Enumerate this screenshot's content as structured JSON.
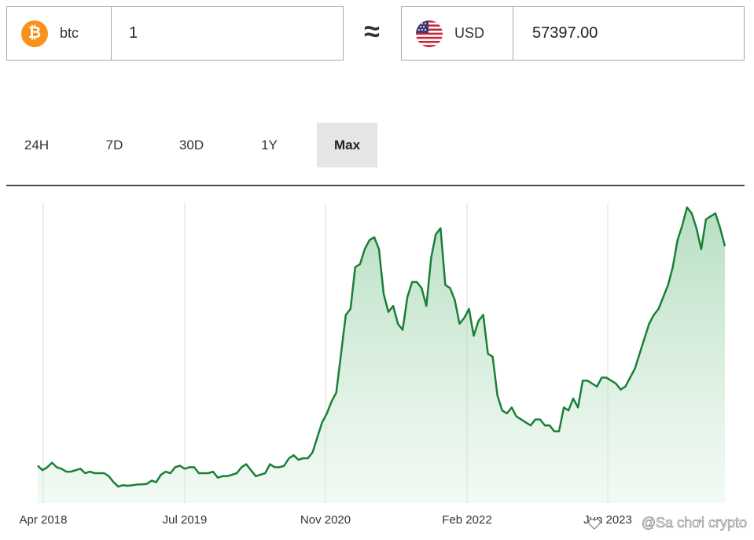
{
  "converter": {
    "from": {
      "icon": "bitcoin-icon",
      "code": "btc",
      "amount": "1",
      "color": "#f7931a"
    },
    "approx_symbol": "≈",
    "to": {
      "icon": "us-flag-icon",
      "code": "USD",
      "amount": "57397.00"
    }
  },
  "tabs": [
    {
      "label": "24H",
      "active": false
    },
    {
      "label": "7D",
      "active": false
    },
    {
      "label": "30D",
      "active": false
    },
    {
      "label": "1Y",
      "active": false
    },
    {
      "label": "Max",
      "active": true
    }
  ],
  "watermark": "@Sa chơi crypto",
  "chart_data": {
    "type": "area",
    "x_ticks": [
      "Apr 2018",
      "Jul 2019",
      "Nov 2020",
      "Feb 2022",
      "Jun 2023"
    ],
    "grid": "vertical",
    "line_color": "#1a7f37",
    "fill_color": "#cfead6",
    "values": [
      0.125,
      0.11,
      0.12,
      0.135,
      0.12,
      0.115,
      0.105,
      0.105,
      0.11,
      0.115,
      0.1,
      0.105,
      0.1,
      0.1,
      0.1,
      0.09,
      0.07,
      0.055,
      0.06,
      0.058,
      0.06,
      0.062,
      0.063,
      0.064,
      0.075,
      0.07,
      0.095,
      0.105,
      0.1,
      0.12,
      0.125,
      0.115,
      0.12,
      0.12,
      0.1,
      0.1,
      0.1,
      0.105,
      0.085,
      0.09,
      0.09,
      0.095,
      0.1,
      0.12,
      0.13,
      0.11,
      0.09,
      0.095,
      0.1,
      0.13,
      0.12,
      0.12,
      0.125,
      0.15,
      0.16,
      0.145,
      0.15,
      0.15,
      0.17,
      0.22,
      0.27,
      0.3,
      0.34,
      0.37,
      0.5,
      0.63,
      0.65,
      0.79,
      0.8,
      0.85,
      0.88,
      0.89,
      0.85,
      0.7,
      0.64,
      0.66,
      0.6,
      0.58,
      0.69,
      0.74,
      0.74,
      0.72,
      0.66,
      0.82,
      0.9,
      0.92,
      0.73,
      0.72,
      0.68,
      0.6,
      0.62,
      0.65,
      0.56,
      0.61,
      0.63,
      0.5,
      0.49,
      0.36,
      0.31,
      0.3,
      0.32,
      0.29,
      0.28,
      0.27,
      0.26,
      0.28,
      0.28,
      0.26,
      0.26,
      0.24,
      0.24,
      0.32,
      0.31,
      0.35,
      0.32,
      0.41,
      0.41,
      0.4,
      0.39,
      0.42,
      0.42,
      0.41,
      0.4,
      0.38,
      0.39,
      0.42,
      0.45,
      0.5,
      0.55,
      0.6,
      0.63,
      0.65,
      0.69,
      0.73,
      0.79,
      0.88,
      0.93,
      0.99,
      0.97,
      0.92,
      0.85,
      0.95,
      0.96,
      0.97,
      0.92,
      0.86
    ]
  }
}
